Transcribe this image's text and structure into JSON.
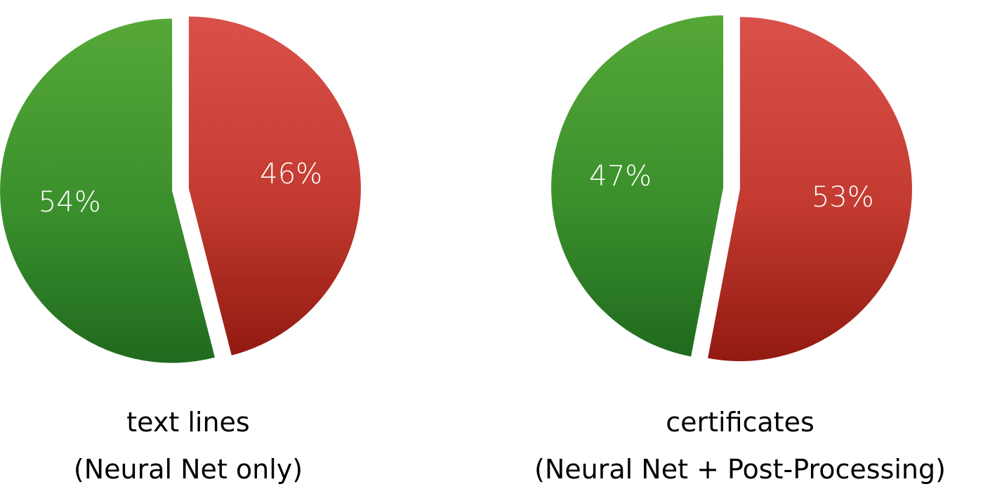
{
  "chart_data": [
    {
      "type": "pie",
      "categories": [
        "green",
        "red"
      ],
      "values": [
        54,
        46
      ],
      "labels": [
        "54%",
        "46%"
      ],
      "colors": [
        "#3f9a2a",
        "#c8322b"
      ],
      "caption_line1": "text lines",
      "caption_line2": "(Neural Net only)"
    },
    {
      "type": "pie",
      "categories": [
        "green",
        "red"
      ],
      "values": [
        47,
        53
      ],
      "labels": [
        "47%",
        "53%"
      ],
      "colors": [
        "#3f9a2a",
        "#c8322b"
      ],
      "caption_line1": "certificates",
      "caption_line2": "(Neural Net + Post-Processing)"
    }
  ]
}
